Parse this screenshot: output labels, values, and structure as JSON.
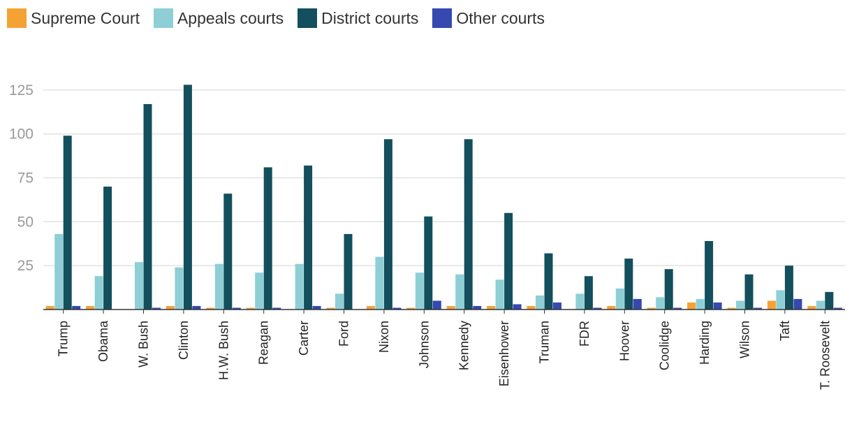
{
  "chart_data": {
    "type": "bar",
    "title": "",
    "xlabel": "",
    "ylabel": "",
    "ylim": [
      0,
      135
    ],
    "yticks": [
      25,
      50,
      75,
      100,
      125
    ],
    "grid": true,
    "legend_position": "top-left",
    "categories": [
      "Trump",
      "Obama",
      "W. Bush",
      "Clinton",
      "H.W. Bush",
      "Reagan",
      "Carter",
      "Ford",
      "Nixon",
      "Johnson",
      "Kennedy",
      "Eisenhower",
      "Truman",
      "FDR",
      "Hoover",
      "Coolidge",
      "Harding",
      "Wilson",
      "Taft",
      "T. Roosevelt"
    ],
    "series": [
      {
        "name": "Supreme Court",
        "color": "#f5a235",
        "values": [
          2,
          2,
          0,
          2,
          1,
          1,
          0,
          1,
          2,
          1,
          2,
          2,
          2,
          0,
          2,
          1,
          4,
          1,
          5,
          2
        ]
      },
      {
        "name": "Appeals courts",
        "color": "#8ecfd6",
        "values": [
          43,
          19,
          27,
          24,
          26,
          21,
          26,
          9,
          30,
          21,
          20,
          17,
          8,
          9,
          12,
          7,
          6,
          5,
          11,
          5
        ]
      },
      {
        "name": "District courts",
        "color": "#134f5c",
        "values": [
          99,
          70,
          117,
          128,
          66,
          81,
          82,
          43,
          97,
          53,
          97,
          55,
          32,
          19,
          29,
          23,
          39,
          20,
          25,
          10
        ]
      },
      {
        "name": "Other courts",
        "color": "#3549b1",
        "values": [
          2,
          0,
          1,
          2,
          1,
          1,
          2,
          0,
          1,
          5,
          2,
          3,
          4,
          1,
          6,
          1,
          4,
          1,
          6,
          1
        ]
      }
    ]
  }
}
